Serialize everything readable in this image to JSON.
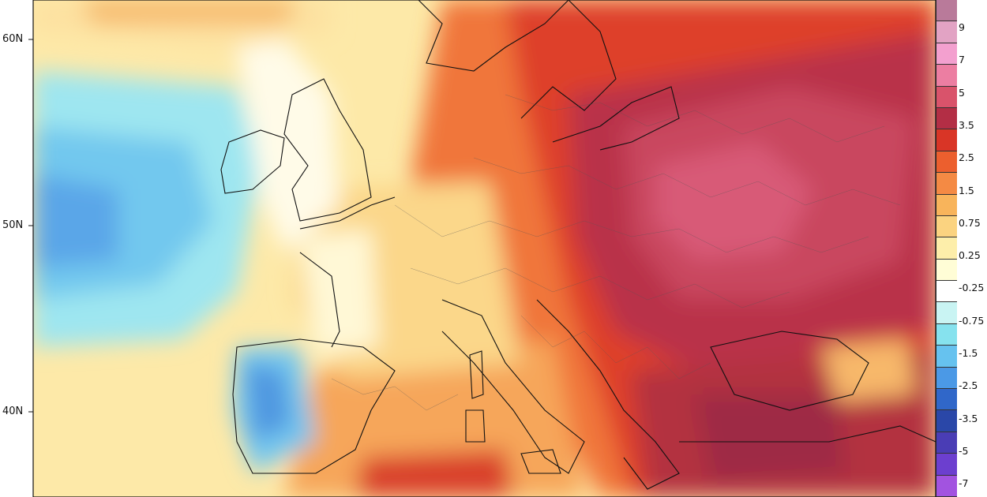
{
  "map": {
    "latitude_labels": [
      "60N",
      "50N",
      "40N"
    ],
    "legend": {
      "labels": [
        "9",
        "7",
        "5",
        "3.5",
        "2.5",
        "1.5",
        "0.75",
        "0.25",
        "-0.25",
        "-0.75",
        "-1.5",
        "-2.5",
        "-3.5",
        "-5",
        "-7"
      ],
      "colors": [
        "#b97a9a",
        "#e2a3c4",
        "#f3a0cf",
        "#ec7ea2",
        "#d9536b",
        "#b32e45",
        "#d93526",
        "#ec5f2e",
        "#f48a44",
        "#f8b45b",
        "#fbd380",
        "#fdeeaa",
        "#fffdd6",
        "#ffffff",
        "#c9f4f3",
        "#86e2ee",
        "#66c2ef",
        "#4b99e6",
        "#3067c9",
        "#2a47a8",
        "#4a3db5",
        "#6c3fcf",
        "#a253e0"
      ]
    }
  }
}
